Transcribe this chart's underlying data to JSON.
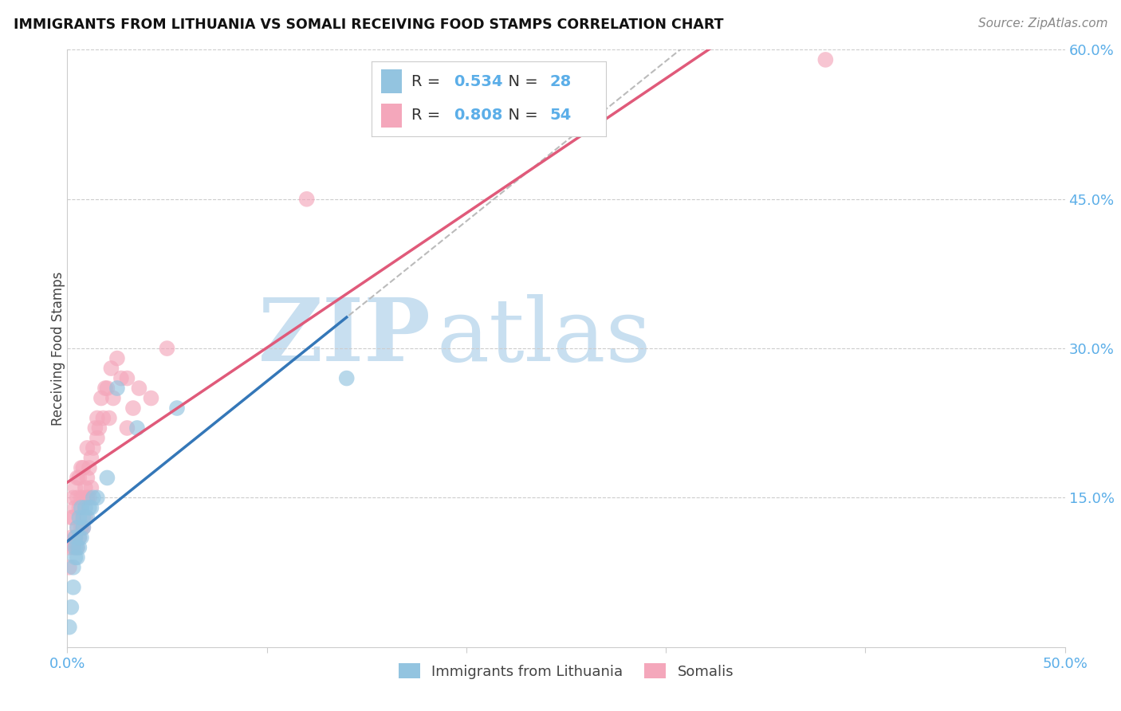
{
  "title": "IMMIGRANTS FROM LITHUANIA VS SOMALI RECEIVING FOOD STAMPS CORRELATION CHART",
  "source": "Source: ZipAtlas.com",
  "ylabel": "Receiving Food Stamps",
  "r_lithuania": 0.534,
  "n_lithuania": 28,
  "r_somali": 0.808,
  "n_somali": 54,
  "xlim": [
    0.0,
    0.5
  ],
  "ylim": [
    0.0,
    0.6
  ],
  "color_lithuania": "#93c4e0",
  "color_somali": "#f4a7bb",
  "line_color_lithuania": "#3477b8",
  "line_color_somali": "#e05a7a",
  "dash_color": "#bbbbbb",
  "watermark": "ZIPatlas",
  "watermark_color": "#c8dff0",
  "background_color": "#ffffff",
  "grid_color": "#cccccc",
  "tick_color": "#5baee8",
  "legend_text_color": "#333333",
  "legend_val_color": "#5baee8",
  "lithuania_x": [
    0.001,
    0.002,
    0.003,
    0.003,
    0.004,
    0.004,
    0.004,
    0.005,
    0.005,
    0.005,
    0.006,
    0.006,
    0.006,
    0.007,
    0.007,
    0.008,
    0.008,
    0.009,
    0.01,
    0.011,
    0.012,
    0.013,
    0.015,
    0.02,
    0.025,
    0.035,
    0.055,
    0.14
  ],
  "lithuania_y": [
    0.02,
    0.04,
    0.06,
    0.08,
    0.09,
    0.1,
    0.11,
    0.09,
    0.1,
    0.12,
    0.1,
    0.11,
    0.13,
    0.11,
    0.14,
    0.12,
    0.13,
    0.14,
    0.13,
    0.14,
    0.14,
    0.15,
    0.15,
    0.17,
    0.26,
    0.22,
    0.24,
    0.27
  ],
  "somali_x": [
    0.001,
    0.001,
    0.002,
    0.002,
    0.003,
    0.003,
    0.003,
    0.004,
    0.004,
    0.004,
    0.005,
    0.005,
    0.005,
    0.005,
    0.006,
    0.006,
    0.006,
    0.007,
    0.007,
    0.007,
    0.008,
    0.008,
    0.008,
    0.009,
    0.009,
    0.01,
    0.01,
    0.01,
    0.011,
    0.011,
    0.012,
    0.012,
    0.013,
    0.014,
    0.015,
    0.015,
    0.016,
    0.017,
    0.018,
    0.019,
    0.02,
    0.021,
    0.022,
    0.023,
    0.025,
    0.027,
    0.03,
    0.03,
    0.033,
    0.036,
    0.042,
    0.05,
    0.12,
    0.38
  ],
  "somali_y": [
    0.08,
    0.1,
    0.11,
    0.13,
    0.1,
    0.13,
    0.15,
    0.11,
    0.14,
    0.16,
    0.1,
    0.12,
    0.15,
    0.17,
    0.11,
    0.14,
    0.17,
    0.12,
    0.15,
    0.18,
    0.12,
    0.15,
    0.18,
    0.13,
    0.16,
    0.15,
    0.17,
    0.2,
    0.15,
    0.18,
    0.16,
    0.19,
    0.2,
    0.22,
    0.21,
    0.23,
    0.22,
    0.25,
    0.23,
    0.26,
    0.26,
    0.23,
    0.28,
    0.25,
    0.29,
    0.27,
    0.22,
    0.27,
    0.24,
    0.26,
    0.25,
    0.3,
    0.45,
    0.59
  ]
}
